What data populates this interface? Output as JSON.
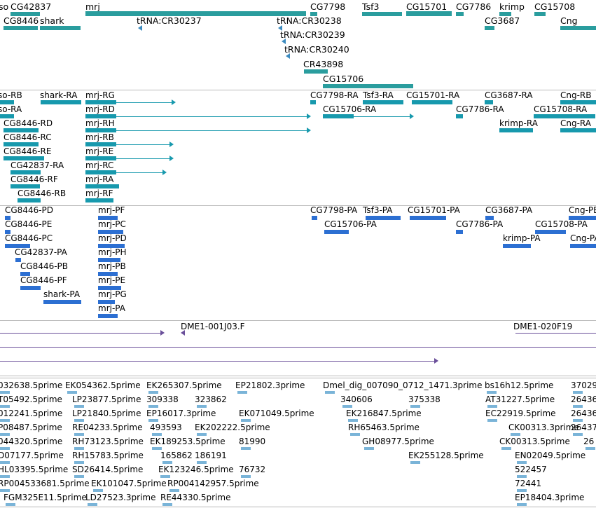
{
  "colors": {
    "gene": "#2a9d9e",
    "transcript": "#1799ad",
    "protein": "#2c6fd2",
    "clone": "#6a4f9a",
    "est": "#7ab4d8",
    "divider": "#b8b8b8"
  },
  "tracks": {
    "genes": {
      "name": "genes-track",
      "features": [
        {
          "label": "so",
          "bars": []
        },
        {
          "label": "CG42837",
          "bars": [
            [
              8,
              0,
              0
            ]
          ]
        },
        {
          "label": "mrj",
          "bars": []
        },
        {
          "label": "CG7798",
          "bars": []
        },
        {
          "label": "Tsf3",
          "bars": []
        },
        {
          "label": "CG15701",
          "bars": []
        },
        {
          "label": "CG7786",
          "bars": []
        },
        {
          "label": "krimp",
          "bars": []
        },
        {
          "label": "CG15708",
          "bars": []
        },
        {
          "label": "CG8446",
          "bars": []
        },
        {
          "label": "shark",
          "bars": []
        },
        {
          "label": "tRNA:CR30237",
          "bars": []
        },
        {
          "label": "tRNA:CR30238",
          "bars": []
        },
        {
          "label": "CG3687",
          "bars": []
        },
        {
          "label": "Cng",
          "bars": []
        },
        {
          "label": "tRNA:CR30239",
          "bars": []
        },
        {
          "label": "tRNA:CR30240",
          "bars": []
        },
        {
          "label": "CR43898",
          "bars": []
        },
        {
          "label": "CG15706",
          "bars": []
        }
      ]
    },
    "transcripts": {
      "name": "transcripts-track",
      "labels": [
        "so-RB",
        "shark-RA",
        "mrj-RG",
        "CG7798-RA",
        "Tsf3-RA",
        "CG15701-RA",
        "CG3687-RA",
        "Cng-RB",
        "so-RA",
        "mrj-RD",
        "CG15706-RA",
        "CG7786-RA",
        "CG15708-RA",
        "CG8446-RD",
        "mrj-RH",
        "krimp-RA",
        "Cng-RA",
        "CG8446-RC",
        "mrj-RB",
        "CG8446-RE",
        "mrj-RE",
        "CG42837-RA",
        "mrj-RC",
        "CG8446-RF",
        "mrj-RA",
        "CG8446-RB",
        "mrj-RF"
      ]
    },
    "proteins": {
      "name": "proteins-track",
      "labels": [
        "CG8446-PD",
        "mrj-PF",
        "CG7798-PA",
        "Tsf3-PA",
        "CG15701-PA",
        "CG3687-PA",
        "Cng-PB",
        "CG8446-PE",
        "mrj-PC",
        "CG15706-PA",
        "CG7786-PA",
        "CG15708-PA",
        "CG8446-PC",
        "mrj-PD",
        "krimp-PA",
        "Cng-PA",
        "CG42837-PA",
        "mrj-PH",
        "CG8446-PB",
        "mrj-PB",
        "CG8446-PF",
        "mrj-PE",
        "shark-PA",
        "mrj-PG",
        "mrj-PA"
      ]
    },
    "clones": {
      "name": "clones-track",
      "labels": [
        "DME1-001J03.F",
        "DME1-020F19"
      ]
    },
    "ests": {
      "name": "ests-track",
      "labels": [
        "032638.5prime",
        "EK054362.5prime",
        "EK265307.5prime",
        "EP21802.3prime",
        "Dmel_dig_007090_0712_1471.3prime",
        "bs16h12.5prime",
        "37029",
        "T05492.5prime",
        "LP23877.5prime",
        "309338",
        "323862",
        "340606",
        "375338",
        "AT31227.5prime",
        "26436",
        "012241.5prime",
        "LP21840.5prime",
        "EP16017.3prime",
        "EK071049.5prime",
        "EK216847.5prime",
        "EC22919.5prime",
        "26436",
        "P08487.5prime",
        "RE04233.5prime",
        "493593",
        "EK202222.5prime",
        "RH65463.5prime",
        "CK00313.3prime",
        "26437",
        "044320.5prime",
        "RH73123.5prime",
        "EK189253.5prime",
        "81990",
        "GH08977.5prime",
        "CK00313.5prime",
        "26",
        "D07177.5prime",
        "RH15783.5prime",
        "165862",
        "186191",
        "EK255128.5prime",
        "EN02049.5prime",
        "HL03395.5prime",
        "SD26414.5prime",
        "EK123246.5prime",
        "76732",
        "522457",
        "RP004533681.5prime",
        "EK101047.5prime",
        "RP004142957.5prime",
        "72441",
        "FGM325E11.5prime",
        "LD27523.3prime",
        "RE44330.5prime",
        "EP18404.3prime"
      ]
    }
  }
}
